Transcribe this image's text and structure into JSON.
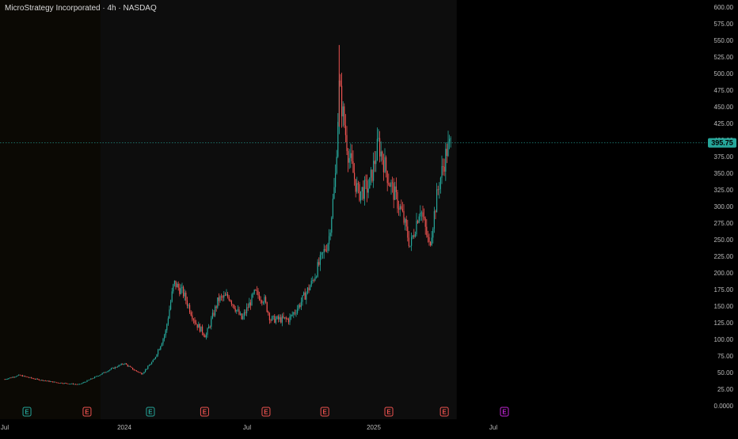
{
  "header": {
    "title": "MicroStrategy Incorporated · 4h · NASDAQ"
  },
  "colors": {
    "up": "#26a69a",
    "down": "#ef5350",
    "future_earnings": "#c026d3",
    "price_line": "#26a69a"
  },
  "chart_data": {
    "type": "candlestick",
    "title": "MicroStrategy Incorporated · 4h · NASDAQ",
    "y_ticks": [
      "0.0000",
      "25.00",
      "50.00",
      "75.00",
      "100.00",
      "125.00",
      "150.00",
      "175.00",
      "200.00",
      "225.00",
      "250.00",
      "275.00",
      "300.00",
      "325.00",
      "350.00",
      "375.00",
      "400.00",
      "425.00",
      "450.00",
      "475.00",
      "500.00",
      "525.00",
      "550.00",
      "575.00",
      "600.00"
    ],
    "ylim": [
      0,
      600
    ],
    "x_labels": [
      "Jul",
      "2024",
      "Jul",
      "2025",
      "Jul"
    ],
    "last_price": 395.75,
    "last_price_label": "395.75",
    "earnings_markers": [
      {
        "label": "E",
        "date": "2023-08-01",
        "status": "past-up"
      },
      {
        "label": "E",
        "date": "2023-11-01",
        "status": "past-down"
      },
      {
        "label": "E",
        "date": "2024-02-06",
        "status": "past-up"
      },
      {
        "label": "E",
        "date": "2024-04-29",
        "status": "past-down"
      },
      {
        "label": "E",
        "date": "2024-08-01",
        "status": "past-down"
      },
      {
        "label": "E",
        "date": "2024-10-30",
        "status": "past-down"
      },
      {
        "label": "E",
        "date": "2025-02-05",
        "status": "past-down"
      },
      {
        "label": "E",
        "date": "2025-05-01",
        "status": "past-down"
      },
      {
        "label": "E",
        "date": "2025-08-01",
        "status": "upcoming"
      }
    ],
    "price_path": [
      {
        "date": "2023-06-28",
        "close": 40
      },
      {
        "date": "2023-07-20",
        "close": 46
      },
      {
        "date": "2023-08-15",
        "close": 40
      },
      {
        "date": "2023-09-15",
        "close": 35
      },
      {
        "date": "2023-10-20",
        "close": 32
      },
      {
        "date": "2023-11-15",
        "close": 44
      },
      {
        "date": "2023-12-05",
        "close": 54
      },
      {
        "date": "2023-12-28",
        "close": 64
      },
      {
        "date": "2024-01-10",
        "close": 55
      },
      {
        "date": "2024-01-24",
        "close": 48
      },
      {
        "date": "2024-02-12",
        "close": 70
      },
      {
        "date": "2024-02-29",
        "close": 110
      },
      {
        "date": "2024-03-13",
        "close": 185
      },
      {
        "date": "2024-03-27",
        "close": 170
      },
      {
        "date": "2024-04-15",
        "close": 125
      },
      {
        "date": "2024-05-01",
        "close": 105
      },
      {
        "date": "2024-05-20",
        "close": 160
      },
      {
        "date": "2024-06-05",
        "close": 165
      },
      {
        "date": "2024-06-25",
        "close": 130
      },
      {
        "date": "2024-07-15",
        "close": 170
      },
      {
        "date": "2024-07-29",
        "close": 160
      },
      {
        "date": "2024-08-08",
        "close": 130
      },
      {
        "date": "2024-09-05",
        "close": 130
      },
      {
        "date": "2024-09-20",
        "close": 150
      },
      {
        "date": "2024-10-10",
        "close": 185
      },
      {
        "date": "2024-11-05",
        "close": 250
      },
      {
        "date": "2024-11-15",
        "close": 340
      },
      {
        "date": "2024-11-21",
        "close": 480
      },
      {
        "date": "2024-12-05",
        "close": 380
      },
      {
        "date": "2024-12-20",
        "close": 320
      },
      {
        "date": "2025-01-06",
        "close": 330
      },
      {
        "date": "2025-01-20",
        "close": 395
      },
      {
        "date": "2025-02-05",
        "close": 340
      },
      {
        "date": "2025-02-25",
        "close": 290
      },
      {
        "date": "2025-03-10",
        "close": 240
      },
      {
        "date": "2025-03-25",
        "close": 300
      },
      {
        "date": "2025-04-08",
        "close": 240
      },
      {
        "date": "2025-04-22",
        "close": 330
      },
      {
        "date": "2025-05-05",
        "close": 385
      },
      {
        "date": "2025-05-12",
        "close": 395.75
      }
    ]
  }
}
